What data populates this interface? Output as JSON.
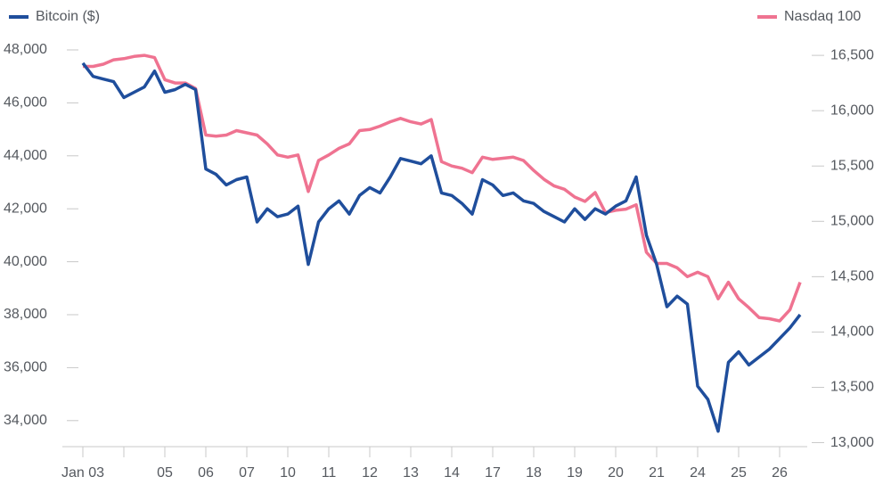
{
  "chart_data": {
    "type": "line",
    "categories": [
      "Jan 03",
      null,
      null,
      null,
      null,
      null,
      null,
      null,
      "05",
      null,
      null,
      null,
      "06",
      null,
      null,
      null,
      "07",
      null,
      null,
      null,
      "10",
      null,
      null,
      null,
      "11",
      null,
      null,
      null,
      "12",
      null,
      null,
      null,
      "13",
      null,
      null,
      null,
      "14",
      null,
      null,
      null,
      "17",
      null,
      null,
      null,
      "18",
      null,
      null,
      null,
      "19",
      null,
      null,
      null,
      "20",
      null,
      null,
      null,
      "21",
      null,
      null,
      null,
      "24",
      null,
      null,
      null,
      "25",
      null,
      null,
      null,
      "26",
      null,
      null
    ],
    "series": [
      {
        "name": "Bitcoin ($)",
        "color": "#1f4e9c",
        "axis": "y",
        "values": [
          47500,
          47000,
          46900,
          46800,
          46200,
          46400,
          46600,
          47200,
          46400,
          46500,
          46700,
          46500,
          43500,
          43300,
          42900,
          43100,
          43200,
          41500,
          42000,
          41700,
          41800,
          42100,
          39900,
          41500,
          42000,
          42300,
          41800,
          42500,
          42800,
          42600,
          43200,
          43900,
          43800,
          43700,
          44000,
          42600,
          42500,
          42200,
          41800,
          43100,
          42900,
          42500,
          42600,
          42300,
          42200,
          41900,
          41700,
          41500,
          42000,
          41600,
          42000,
          41800,
          42100,
          42300,
          43200,
          41000,
          39900,
          38300,
          38700,
          38400,
          35300,
          34800,
          33600,
          36200,
          36600,
          36100,
          36400,
          36700,
          37100,
          37500,
          38000
        ]
      },
      {
        "name": "Nasdaq 100",
        "color": "#ef7391",
        "axis": "y2",
        "values": [
          16400,
          16400,
          16420,
          16460,
          16470,
          16490,
          16500,
          16480,
          16280,
          16250,
          16250,
          16200,
          15780,
          15770,
          15780,
          15820,
          15800,
          15780,
          15700,
          15600,
          15580,
          15600,
          15270,
          15550,
          15600,
          15660,
          15700,
          15820,
          15830,
          15860,
          15900,
          15930,
          15900,
          15880,
          15920,
          15540,
          15500,
          15480,
          15440,
          15580,
          15560,
          15570,
          15580,
          15550,
          15460,
          15380,
          15320,
          15290,
          15220,
          15180,
          15260,
          15080,
          15100,
          15110,
          15150,
          14720,
          14620,
          14620,
          14580,
          14500,
          14540,
          14500,
          14300,
          14450,
          14300,
          14220,
          14130,
          14120,
          14100,
          14200,
          14450
        ]
      }
    ],
    "ylim": [
      33000,
      48400
    ],
    "yticks": [
      {
        "value": 34000,
        "label": "34,000"
      },
      {
        "value": 36000,
        "label": "36,000"
      },
      {
        "value": 38000,
        "label": "38,000"
      },
      {
        "value": 40000,
        "label": "40,000"
      },
      {
        "value": 42000,
        "label": "42,000"
      },
      {
        "value": 44000,
        "label": "44,000"
      },
      {
        "value": 46000,
        "label": "46,000"
      },
      {
        "value": 48000,
        "label": "48,000"
      }
    ],
    "y2lim": [
      12960,
      16645
    ],
    "y2ticks": [
      {
        "value": 13000,
        "label": "13,000"
      },
      {
        "value": 13500,
        "label": "13,500"
      },
      {
        "value": 14000,
        "label": "14,000"
      },
      {
        "value": 14500,
        "label": "14,500"
      },
      {
        "value": 15000,
        "label": "15,000"
      },
      {
        "value": 15500,
        "label": "15,500"
      },
      {
        "value": 16000,
        "label": "16,000"
      },
      {
        "value": 16500,
        "label": "16,500"
      }
    ]
  }
}
